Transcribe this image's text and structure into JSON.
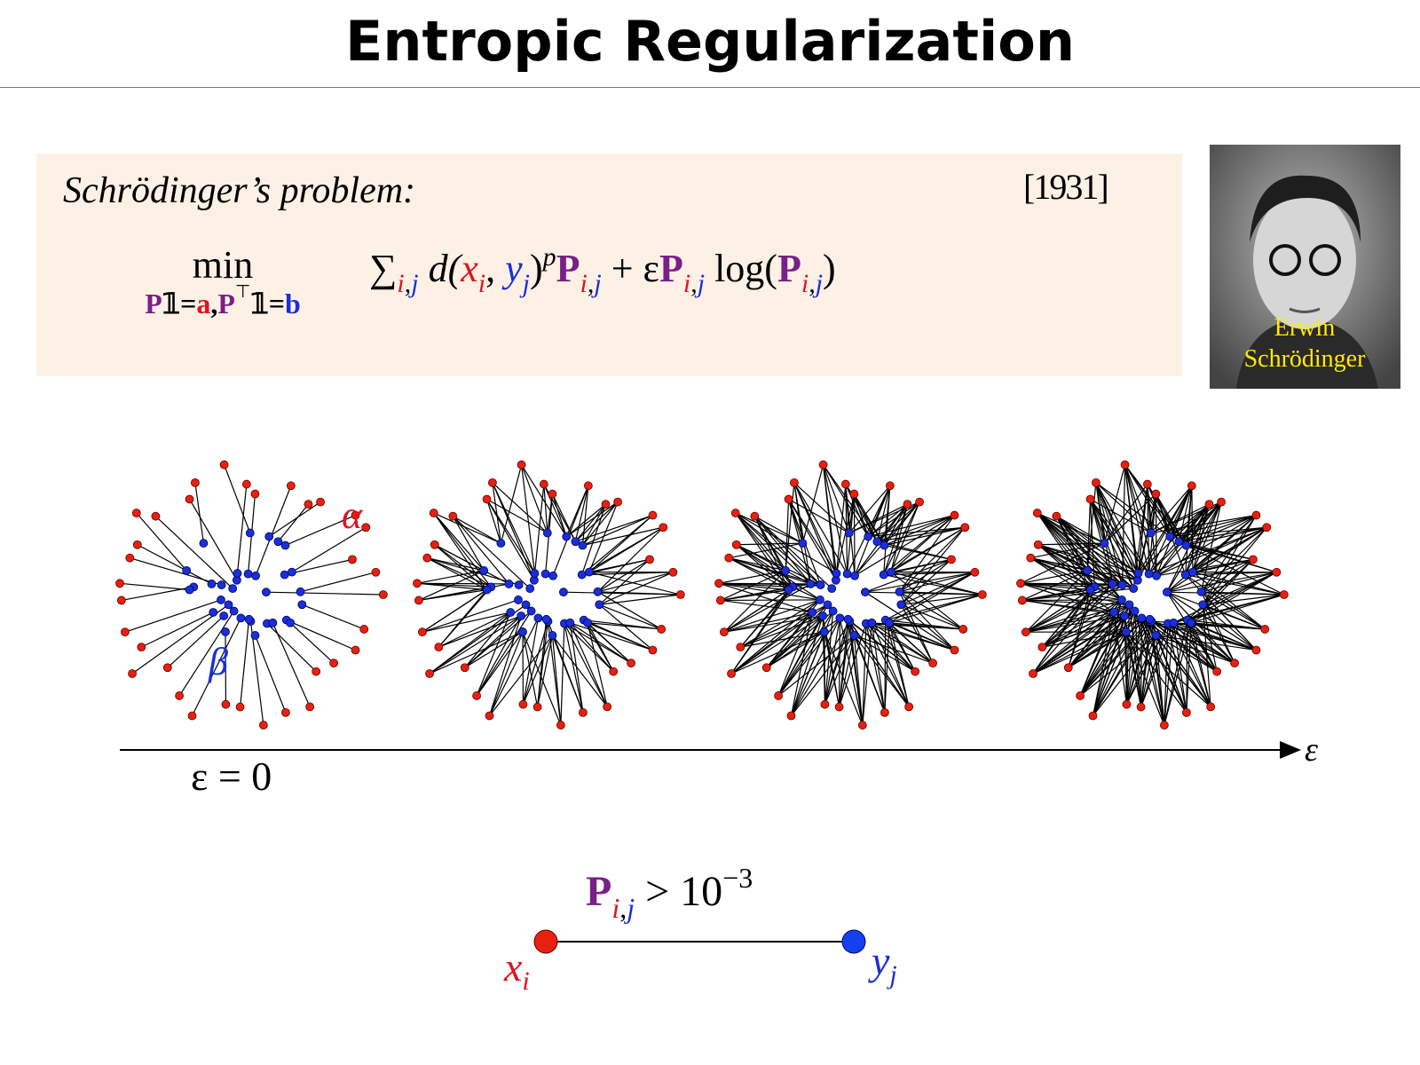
{
  "title": "Entropic Regularization",
  "problem": {
    "label": "Schrödinger’s problem:",
    "year": "[1931]",
    "formula": {
      "min": "min",
      "constraint": [
        "P",
        "𝟙=",
        "a",
        ",",
        "P",
        "⊤",
        "𝟙=",
        "b"
      ],
      "objective": [
        "∑",
        "i",
        ",",
        "j",
        "d(",
        "x",
        "i",
        ", ",
        "y",
        "j",
        ")",
        "p",
        "P",
        "i",
        ",",
        "j",
        " + ε",
        "P",
        "i",
        ",",
        "j",
        " log(",
        "P",
        "i",
        ",",
        "j",
        ")"
      ]
    }
  },
  "portrait": {
    "caption": [
      "Erwin",
      "Schrödinger"
    ]
  },
  "figure": {
    "alpha": "α",
    "beta": "β",
    "axis_label": "ε",
    "start_label": "ε = 0"
  },
  "legend": {
    "edge_label": [
      "P",
      "i",
      ",",
      "j",
      " > 10",
      "−3"
    ],
    "x": "x",
    "x_sub": "i",
    "y": "y",
    "y_sub": "j"
  }
}
